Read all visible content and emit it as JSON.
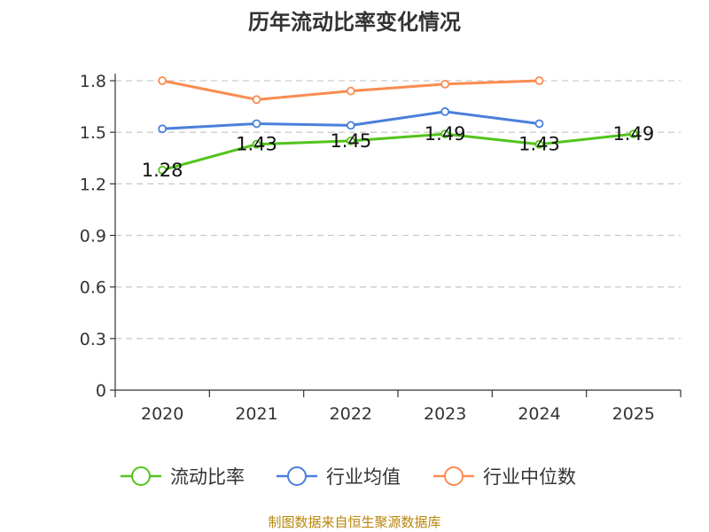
{
  "chart_data": {
    "type": "line",
    "title": "历年流动比率变化情况",
    "categories": [
      "2020",
      "2021",
      "2022",
      "2023",
      "2024",
      "2025"
    ],
    "y_ticks": [
      "0",
      "0.3",
      "0.6",
      "0.9",
      "1.2",
      "1.5",
      "1.8"
    ],
    "ylim": [
      0,
      1.8
    ],
    "grid": "horizontal dashed",
    "legend_position": "bottom",
    "series": [
      {
        "name": "流动比率",
        "color": "#52c41a",
        "values": [
          1.28,
          1.43,
          1.45,
          1.49,
          1.43,
          1.49
        ],
        "labels": [
          "1.28",
          "1.43",
          "1.45",
          "1.49",
          "1.43",
          "1.49"
        ]
      },
      {
        "name": "行业均值",
        "color": "#4a7fdb",
        "values": [
          1.52,
          1.55,
          1.54,
          1.62,
          1.55,
          null
        ]
      },
      {
        "name": "行业中位数",
        "color": "#fa8c50",
        "values": [
          1.8,
          1.69,
          1.74,
          1.78,
          1.8,
          null
        ]
      }
    ],
    "source": "制图数据来自恒生聚源数据库"
  }
}
